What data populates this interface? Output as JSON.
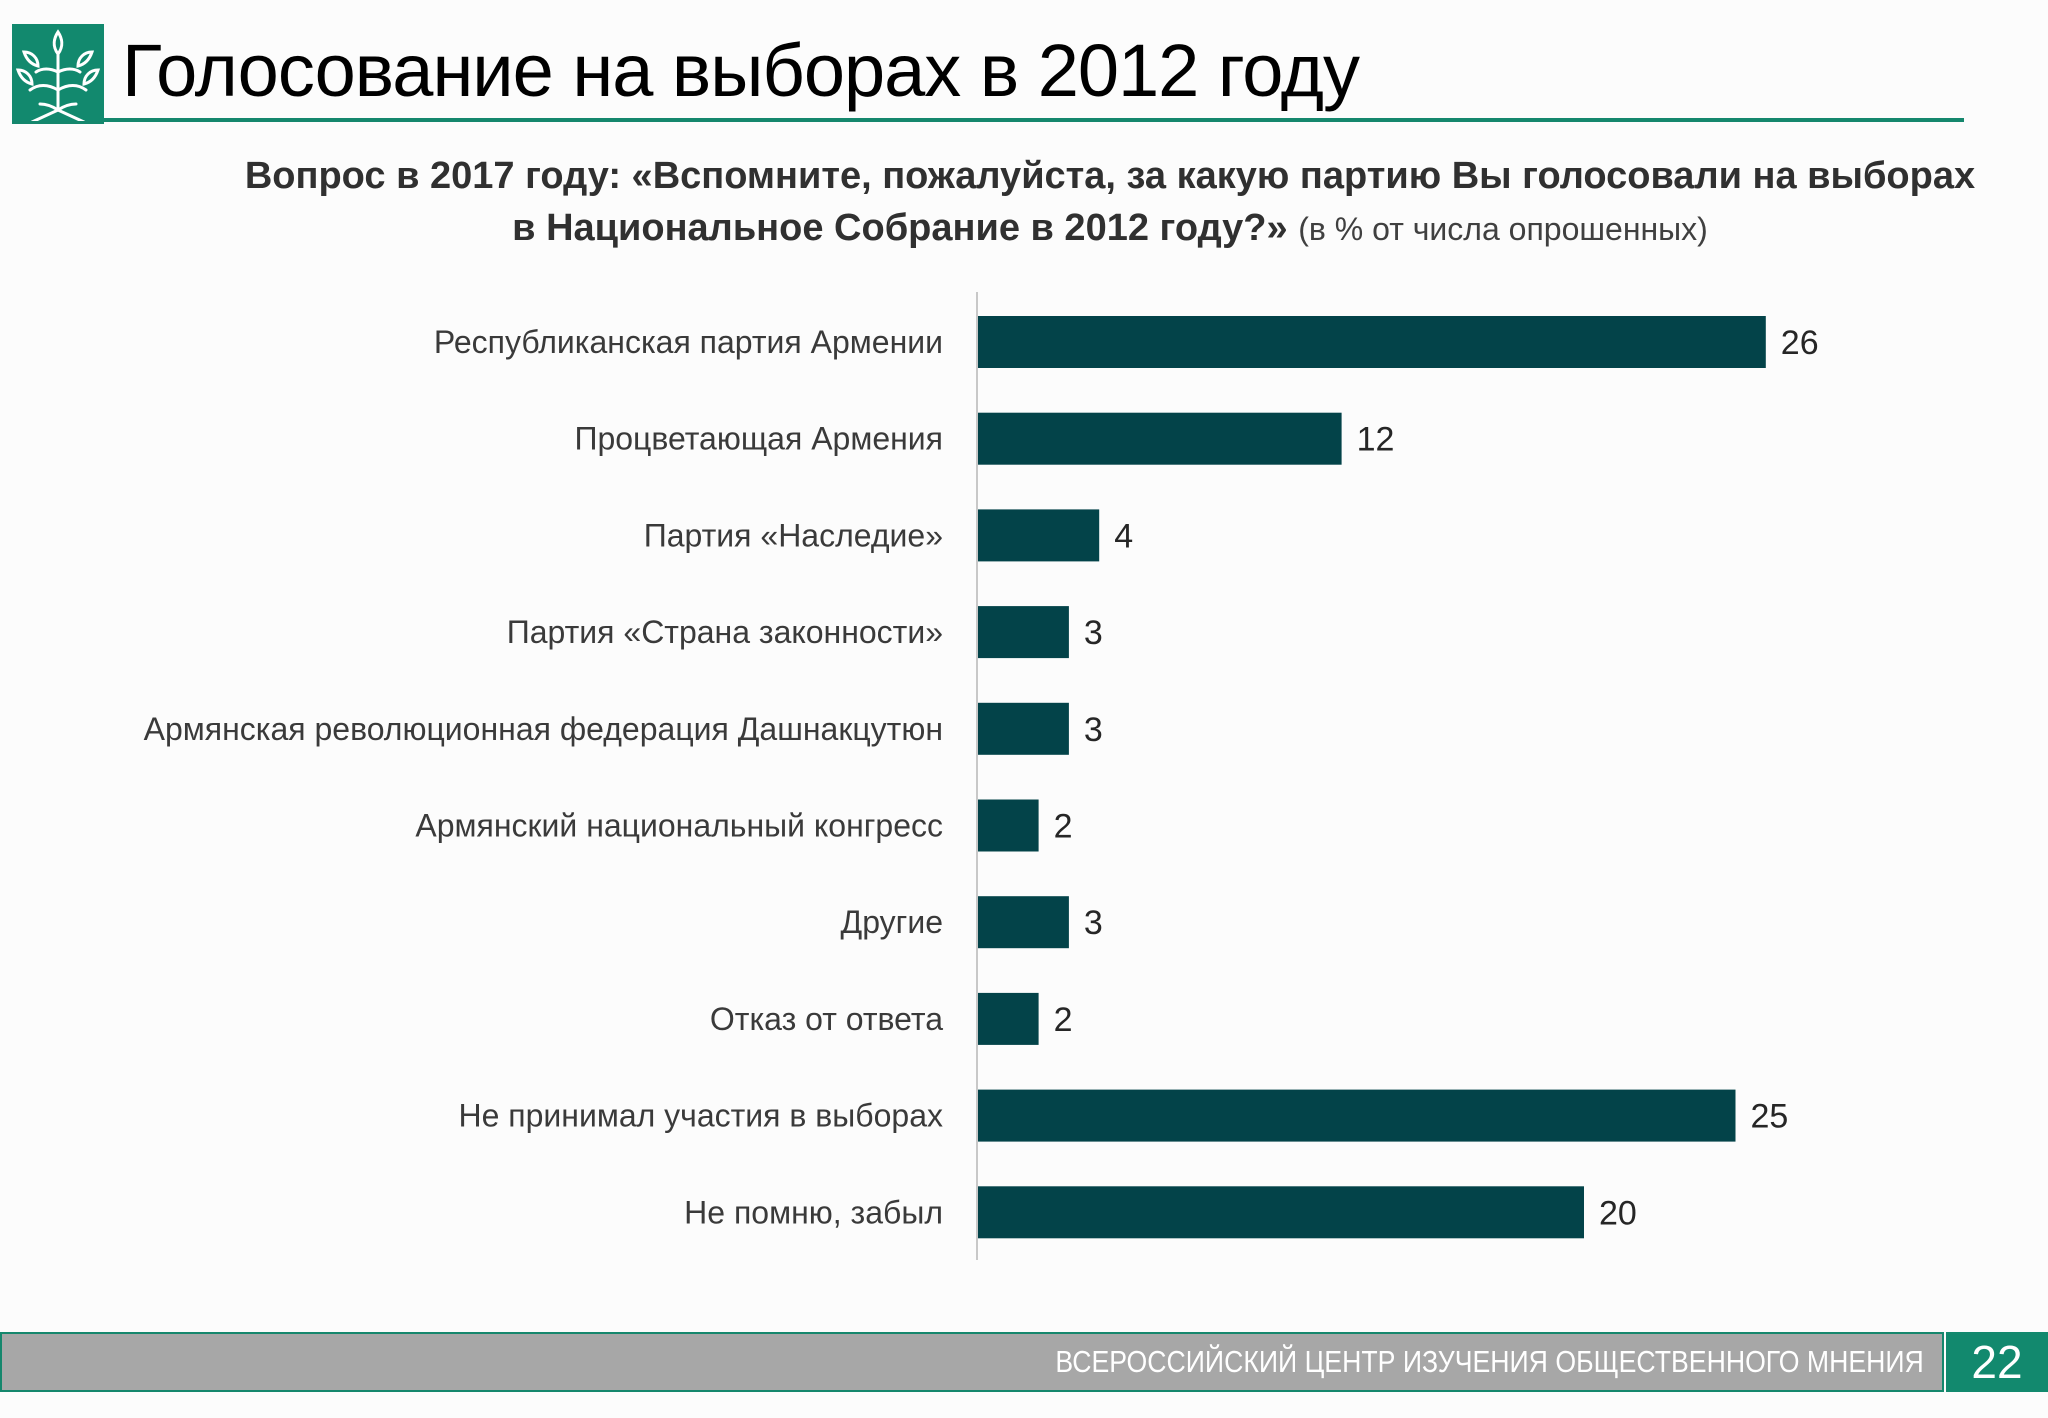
{
  "header": {
    "title": "Голосование на выборах в 2012 году",
    "logo_icon": "tree-leaf-icon",
    "accent_color": "#12896e"
  },
  "question": {
    "bold_text": "Вопрос в 2017 году: «Вспомните, пожалуйста, за какую партию Вы голосовали на выборах в Национальное Собрание в 2012 году?»",
    "unit_text": "(в % от числа опрошенных)"
  },
  "chart_data": {
    "type": "bar",
    "orientation": "horizontal",
    "categories": [
      "Республиканская партия Армении",
      "Процветающая Армения",
      "Партия «Наследие»",
      "Партия «Страна законности»",
      "Армянская революционная федерация Дашнакцутюн",
      "Армянский национальный конгресс",
      "Другие",
      "Отказ от ответа",
      "Не принимал участия в выборах",
      "Не помню, забыл"
    ],
    "values": [
      26,
      12,
      4,
      3,
      3,
      2,
      3,
      2,
      25,
      20
    ],
    "data_labels": [
      "26",
      "12",
      "4",
      "3",
      "3",
      "2",
      "3",
      "2",
      "25",
      "20"
    ],
    "bar_color": "#034349",
    "grid": false,
    "legend": "none"
  },
  "footer": {
    "organization": "ВСЕРОССИЙСКИЙ ЦЕНТР ИЗУЧЕНИЯ ОБЩЕСТВЕННОГО МНЕНИЯ",
    "page_number": "22"
  }
}
